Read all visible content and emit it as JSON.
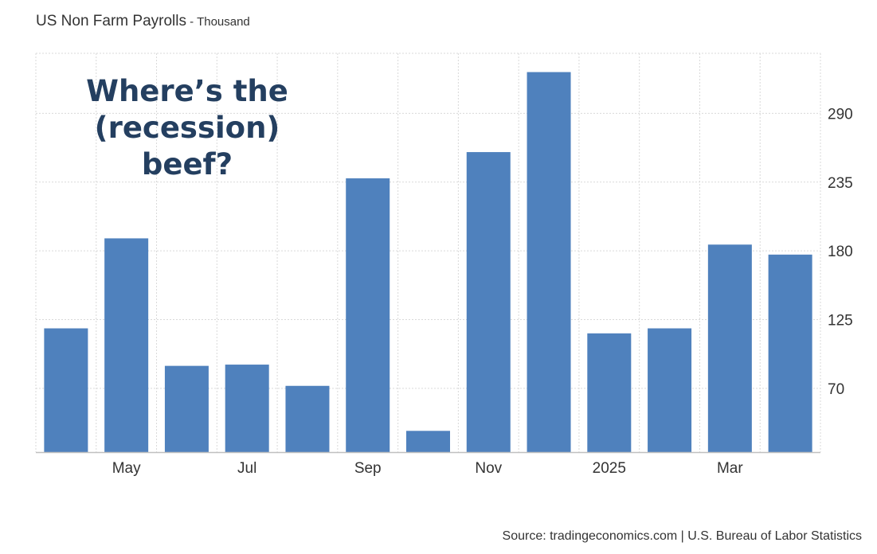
{
  "title": {
    "main": "US Non Farm Payrolls",
    "separator": " - ",
    "unit": "Thousand"
  },
  "annotation": {
    "lines": [
      "Where’s the",
      "(recession)",
      "beef?"
    ]
  },
  "source": "Source: tradingeconomics.com | U.S. Bureau of Labor Statistics",
  "colors": {
    "bar": "#4f81bd",
    "annotation": "#243f60",
    "grid": "#d9d9d9",
    "axis": "#c0c0c0",
    "text": "#333333"
  },
  "chart_data": {
    "type": "bar",
    "categories": [
      "",
      "May",
      "",
      "Jul",
      "",
      "Sep",
      "",
      "Nov",
      "",
      "2025",
      "",
      "Mar",
      ""
    ],
    "values": [
      118,
      190,
      88,
      89,
      72,
      238,
      36,
      259,
      323,
      114,
      118,
      185,
      177
    ],
    "ylim": [
      19,
      338
    ],
    "yticks": [
      70,
      125,
      180,
      235,
      290
    ],
    "grid": true,
    "legend": "none"
  }
}
